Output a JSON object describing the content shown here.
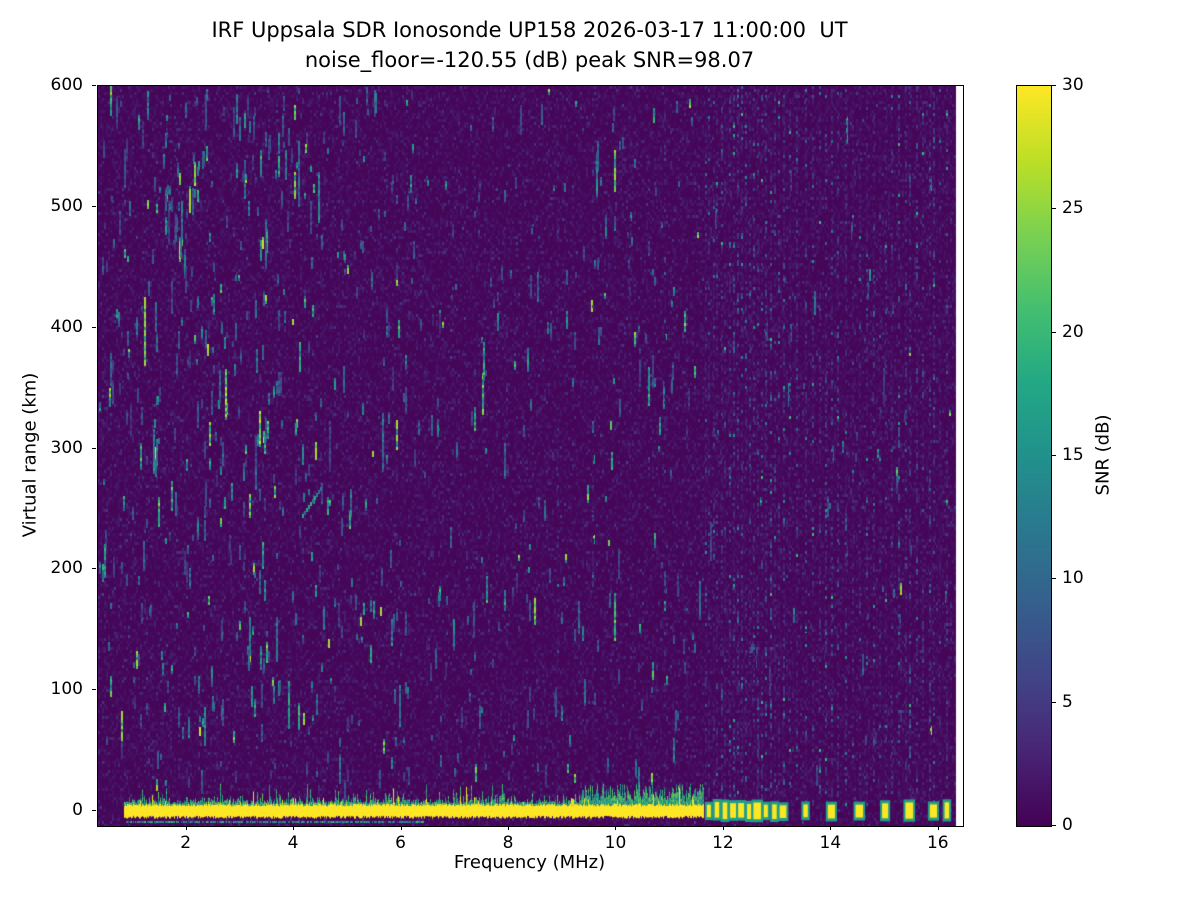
{
  "chart_data": {
    "type": "heatmap",
    "title": "IRF Uppsala SDR Ionosonde UP158 2026-03-17 11:00:00  UT",
    "subtitle": "noise_floor=-120.55 (dB) peak SNR=98.07",
    "station": "UP158",
    "timestamp_ut": "2026-03-17 11:00:00",
    "noise_floor_db": -120.55,
    "peak_snr_db": 98.07,
    "xlabel": "Frequency (MHz)",
    "ylabel": "Virtual range (km)",
    "xlim": [
      0.35,
      16.45
    ],
    "ylim": [
      -12.4,
      600
    ],
    "xticks": [
      2,
      4,
      6,
      8,
      10,
      12,
      14,
      16
    ],
    "yticks": [
      0,
      100,
      200,
      300,
      400,
      500,
      600
    ],
    "grid": false,
    "background_color": "#ffffff",
    "text_color": "#000000",
    "colorbar": {
      "label": "SNR (dB)",
      "min": 0,
      "max": 30,
      "ticks": [
        0,
        5,
        10,
        15,
        20,
        25,
        30
      ],
      "colormap": "viridis",
      "stops": [
        "#440154",
        "#482475",
        "#414487",
        "#355f8d",
        "#2a788e",
        "#21918c",
        "#22a884",
        "#44bf70",
        "#7ad151",
        "#bddf26",
        "#fde725"
      ]
    },
    "features": {
      "ground_return_band": {
        "range_km": 0,
        "freq_start_mhz": 0.85,
        "freq_end_mhz": 11.62,
        "snr_db": 30,
        "thickness_km": 11
      },
      "stepped_sounding_blobs_mhz": [
        11.72,
        11.87,
        12.02,
        12.17,
        12.32,
        12.47,
        12.62,
        12.78,
        12.94,
        13.1,
        13.52,
        14.0,
        14.52,
        15.0,
        15.45,
        15.9,
        16.15
      ],
      "rfi_stripe_freqs_mhz": [
        11.66,
        11.72,
        11.8,
        11.87,
        11.95,
        12.02,
        12.1,
        12.17,
        12.25,
        12.32,
        12.4,
        12.47,
        12.55,
        12.62,
        12.7,
        12.78,
        12.86,
        12.94,
        13.02,
        13.1,
        13.22,
        13.35,
        13.52,
        13.65,
        13.78,
        13.9,
        14.0,
        14.12,
        14.26,
        14.4,
        14.52,
        14.65,
        14.78,
        14.9,
        15.0,
        15.12,
        15.25,
        15.38,
        15.45,
        15.58,
        15.7,
        15.82,
        15.9,
        16.02,
        16.15
      ],
      "weak_stripe_freqs_mhz": [
        8.9,
        9.55,
        10.25,
        10.9,
        11.3
      ],
      "slant_echo": {
        "freq_start_mhz": 4.15,
        "freq_end_mhz": 4.5,
        "range_start_km": 245,
        "range_end_km": 268
      },
      "background_noise_mean_db": 1.0,
      "data_gap_right_mhz": [
        16.32,
        16.45
      ]
    },
    "render": {
      "seed": 15803,
      "speckle_count": 780
    }
  }
}
